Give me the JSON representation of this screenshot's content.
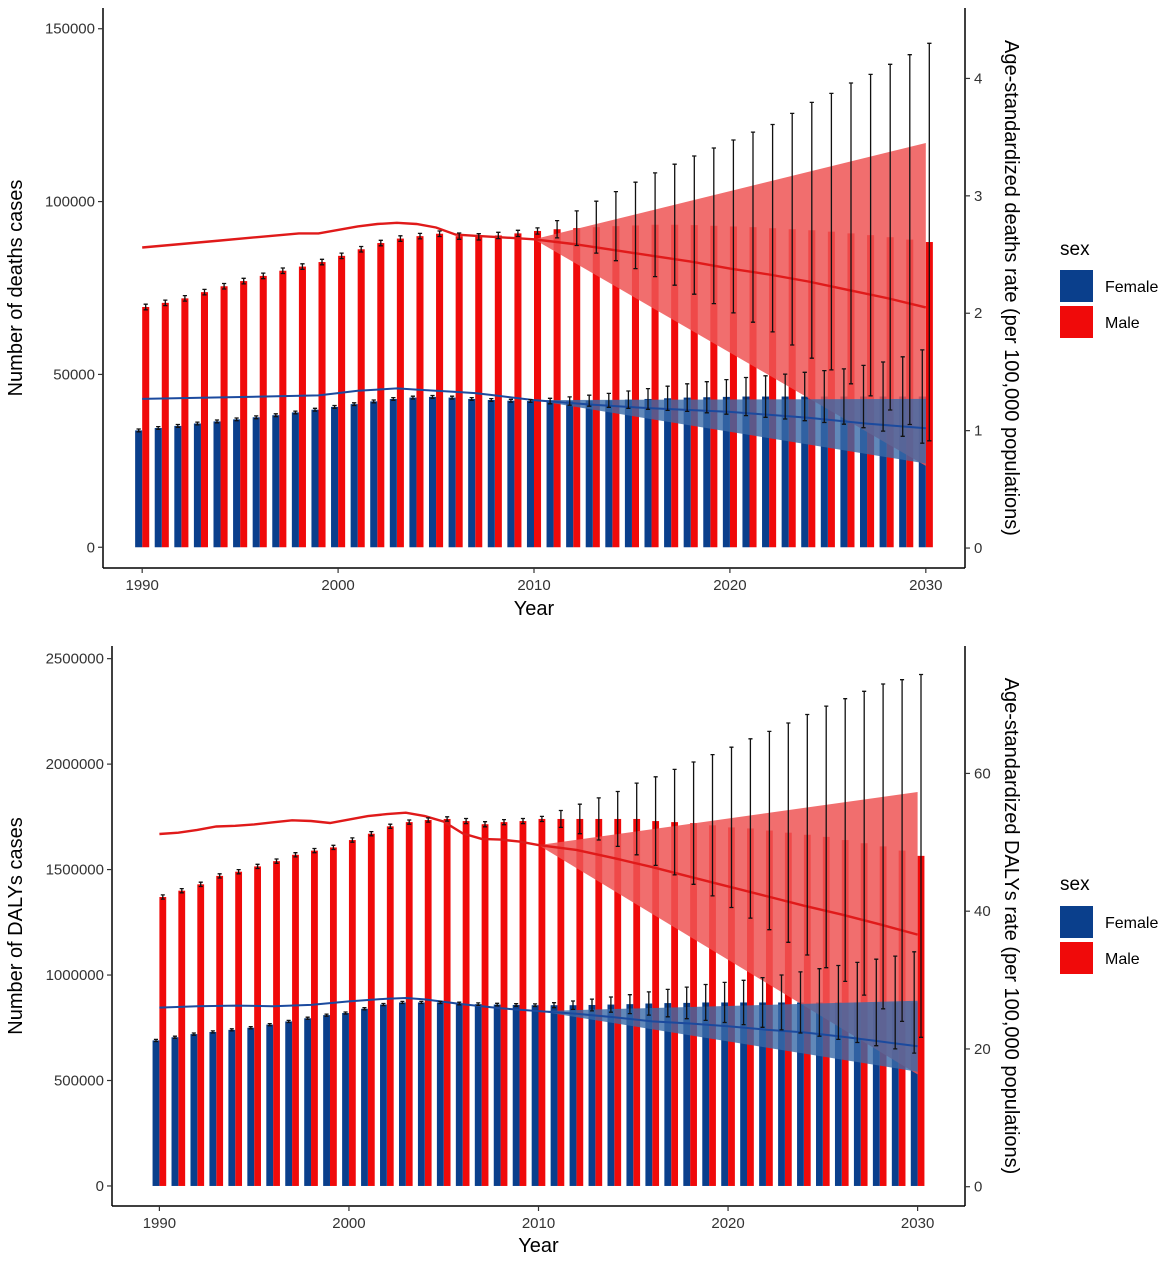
{
  "colors": {
    "female": "#0a3f8c",
    "male": "#f00a0a",
    "male_line": "#e01a1a",
    "female_line": "#1b4a9e",
    "male_band": "#ef5555",
    "female_band": "#3a6aa8",
    "errorbar": "#111111"
  },
  "legend": {
    "title": "sex",
    "items": [
      "Female",
      "Male"
    ]
  },
  "chart_data": [
    {
      "type": "bar",
      "title": "",
      "xlabel": "Year",
      "ylabel": "Number of deaths cases",
      "y2label": "Age-standardized deaths rate (per 100,000 populations)",
      "x": [
        1990,
        1991,
        1992,
        1993,
        1994,
        1995,
        1996,
        1997,
        1998,
        1999,
        2000,
        2001,
        2002,
        2003,
        2004,
        2005,
        2006,
        2007,
        2008,
        2009,
        2010,
        2011,
        2012,
        2013,
        2014,
        2015,
        2016,
        2017,
        2018,
        2019,
        2020,
        2021,
        2022,
        2023,
        2024,
        2025,
        2026,
        2027,
        2028,
        2029,
        2030
      ],
      "xlim": [
        1988,
        2032
      ],
      "xticks": [
        "1990",
        "2000",
        "2010",
        "2020",
        "2030"
      ],
      "ylim": [
        -6000,
        156000
      ],
      "yticks": [
        "0",
        "50000",
        "100000",
        "150000"
      ],
      "y2lim": [
        -0.17,
        4.6
      ],
      "y2ticks": [
        "0",
        "1",
        "2",
        "3",
        "4"
      ],
      "series": [
        {
          "name": "Female",
          "values": [
            33800,
            34500,
            35100,
            35800,
            36400,
            37000,
            37600,
            38200,
            39000,
            39800,
            40600,
            41400,
            42200,
            42900,
            43300,
            43500,
            43300,
            42900,
            42600,
            42400,
            42300,
            42300,
            42300,
            42400,
            42500,
            42700,
            42900,
            43100,
            43300,
            43400,
            43500,
            43600,
            43600,
            43600,
            43600,
            43600,
            43600,
            43600,
            43600,
            43600,
            43600
          ],
          "errors": [
            400,
            400,
            400,
            400,
            400,
            400,
            400,
            400,
            400,
            400,
            400,
            400,
            400,
            400,
            400,
            400,
            400,
            400,
            400,
            400,
            400,
            800,
            1200,
            1600,
            2000,
            2500,
            3000,
            3500,
            4000,
            4500,
            5000,
            5500,
            6000,
            6500,
            7000,
            7500,
            8000,
            9000,
            10000,
            11500,
            13500
          ]
        },
        {
          "name": "Male",
          "values": [
            69500,
            70700,
            72000,
            73800,
            75500,
            77000,
            78500,
            80000,
            81200,
            82500,
            84300,
            86200,
            88000,
            89300,
            90000,
            90700,
            90000,
            89800,
            90200,
            90800,
            91500,
            92000,
            92300,
            92600,
            92900,
            93100,
            93300,
            93300,
            93200,
            93000,
            92800,
            92600,
            92300,
            92000,
            91700,
            91300,
            90800,
            90300,
            89700,
            89000,
            88300
          ],
          "errors": [
            800,
            800,
            800,
            800,
            800,
            800,
            800,
            800,
            800,
            800,
            800,
            800,
            800,
            800,
            800,
            800,
            900,
            900,
            900,
            900,
            900,
            2500,
            5000,
            7500,
            10000,
            12500,
            15000,
            17500,
            20000,
            22500,
            25000,
            27500,
            30000,
            33500,
            37000,
            40000,
            43500,
            46500,
            50000,
            53500,
            57500
          ]
        }
      ],
      "rate_lines": [
        {
          "name": "Male",
          "x": [
            1990,
            1992,
            1994,
            1996,
            1998,
            1999,
            2000,
            2001,
            2002,
            2003,
            2004,
            2005,
            2006,
            2007,
            2008,
            2009,
            2010,
            2012,
            2014,
            2016,
            2018,
            2020,
            2022,
            2024,
            2026,
            2028,
            2030
          ],
          "values": [
            2.56,
            2.59,
            2.62,
            2.65,
            2.68,
            2.68,
            2.71,
            2.74,
            2.76,
            2.77,
            2.76,
            2.73,
            2.67,
            2.66,
            2.65,
            2.64,
            2.63,
            2.59,
            2.54,
            2.49,
            2.44,
            2.38,
            2.33,
            2.27,
            2.2,
            2.13,
            2.05
          ],
          "band_x": [
            2010,
            2030
          ],
          "band_upper": [
            2.63,
            3.45
          ],
          "band_lower": [
            2.63,
            0.7
          ]
        },
        {
          "name": "Female",
          "x": [
            1990,
            1993,
            1996,
            1999,
            2000,
            2001,
            2002,
            2003,
            2004,
            2005,
            2006,
            2007,
            2008,
            2010,
            2013,
            2016,
            2020,
            2024,
            2027,
            2030
          ],
          "values": [
            1.27,
            1.28,
            1.29,
            1.3,
            1.32,
            1.34,
            1.35,
            1.36,
            1.35,
            1.34,
            1.33,
            1.32,
            1.3,
            1.26,
            1.22,
            1.19,
            1.16,
            1.11,
            1.06,
            1.02
          ],
          "band_x": [
            2010,
            2030
          ],
          "band_upper": [
            1.26,
            1.27
          ],
          "band_lower": [
            1.26,
            0.72
          ]
        }
      ]
    },
    {
      "type": "bar",
      "title": "",
      "xlabel": "Year",
      "ylabel": "Number of DALYs cases",
      "y2label": "Age-standardized DALYs rate (per 100,000 populations)",
      "x": [
        1990,
        1991,
        1992,
        1993,
        1994,
        1995,
        1996,
        1997,
        1998,
        1999,
        2000,
        2001,
        2002,
        2003,
        2004,
        2005,
        2006,
        2007,
        2008,
        2009,
        2010,
        2011,
        2012,
        2013,
        2014,
        2015,
        2016,
        2017,
        2018,
        2019,
        2020,
        2021,
        2022,
        2023,
        2024,
        2025,
        2026,
        2027,
        2028,
        2029,
        2030
      ],
      "xlim": [
        1987.5,
        2032.5
      ],
      "xticks": [
        "1990",
        "2000",
        "2010",
        "2020",
        "2030"
      ],
      "ylim": [
        -95000,
        2560000
      ],
      "yticks": [
        "0",
        "500000",
        "1000000",
        "1500000",
        "2000000",
        "2500000"
      ],
      "y2lim": [
        -2.8,
        78.5
      ],
      "y2ticks": [
        "0",
        "20",
        "40",
        "60"
      ],
      "series": [
        {
          "name": "Female",
          "values": [
            690000,
            705000,
            720000,
            730000,
            740000,
            750000,
            765000,
            780000,
            795000,
            810000,
            820000,
            840000,
            860000,
            870000,
            870000,
            870000,
            865000,
            862000,
            860000,
            858000,
            857000,
            857000,
            857000,
            858000,
            860000,
            862000,
            865000,
            867000,
            868000,
            870000,
            870000,
            870000,
            870000,
            870000,
            870000,
            870000,
            870000,
            870000,
            870000,
            870000,
            870000
          ],
          "errors": [
            5000,
            5000,
            5000,
            5000,
            5000,
            5000,
            5000,
            5000,
            5000,
            5000,
            5000,
            5000,
            5000,
            5000,
            5000,
            5000,
            6000,
            6000,
            6000,
            6000,
            6000,
            12000,
            20000,
            28000,
            36000,
            45000,
            55000,
            65000,
            75000,
            85000,
            95000,
            105000,
            118000,
            130000,
            145000,
            160000,
            175000,
            190000,
            205000,
            220000,
            240000
          ]
        },
        {
          "name": "Male",
          "values": [
            1370000,
            1400000,
            1430000,
            1470000,
            1490000,
            1515000,
            1540000,
            1570000,
            1590000,
            1605000,
            1640000,
            1670000,
            1705000,
            1725000,
            1735000,
            1740000,
            1730000,
            1715000,
            1725000,
            1730000,
            1740000,
            1740000,
            1740000,
            1740000,
            1740000,
            1740000,
            1730000,
            1725000,
            1720000,
            1710000,
            1700000,
            1695000,
            1685000,
            1675000,
            1665000,
            1655000,
            1640000,
            1625000,
            1610000,
            1590000,
            1565000
          ],
          "errors": [
            10000,
            10000,
            10000,
            10000,
            10000,
            10000,
            10000,
            10000,
            10000,
            10000,
            10000,
            10000,
            10000,
            10000,
            10000,
            10000,
            12000,
            12000,
            12000,
            12000,
            12000,
            40000,
            70000,
            100000,
            130000,
            170000,
            210000,
            250000,
            290000,
            335000,
            380000,
            425000,
            470000,
            520000,
            570000,
            620000,
            670000,
            720000,
            770000,
            810000,
            860000
          ]
        }
      ],
      "rate_lines": [
        {
          "name": "Male",
          "x": [
            1990,
            1991,
            1992,
            1993,
            1994,
            1995,
            1996,
            1997,
            1998,
            1999,
            2000,
            2001,
            2002,
            2003,
            2004,
            2005,
            2006,
            2007,
            2008,
            2009,
            2010,
            2012,
            2014,
            2016,
            2018,
            2020,
            2022,
            2024,
            2026,
            2028,
            2030
          ],
          "values": [
            51.2,
            51.4,
            51.8,
            52.3,
            52.4,
            52.6,
            52.9,
            53.2,
            53.1,
            52.8,
            53.3,
            53.8,
            54.1,
            54.3,
            53.8,
            53.0,
            51.3,
            50.5,
            50.4,
            50.1,
            49.6,
            48.9,
            47.7,
            46.4,
            45.0,
            43.6,
            42.2,
            40.8,
            39.5,
            38.1,
            36.6
          ],
          "band_x": [
            2010,
            2030
          ],
          "band_upper": [
            49.6,
            57.3
          ],
          "band_lower": [
            49.6,
            16.3
          ]
        },
        {
          "name": "Female",
          "x": [
            1990,
            1992,
            1994,
            1996,
            1998,
            2000,
            2002,
            2003,
            2004,
            2006,
            2008,
            2010,
            2012,
            2014,
            2016,
            2018,
            2020,
            2022,
            2024,
            2026,
            2028,
            2030
          ],
          "values": [
            26.0,
            26.2,
            26.3,
            26.2,
            26.4,
            26.9,
            27.3,
            27.4,
            27.2,
            26.5,
            25.9,
            25.5,
            25.1,
            24.6,
            24.0,
            23.7,
            23.3,
            22.8,
            22.4,
            21.8,
            21.1,
            20.4
          ],
          "band_x": [
            2010,
            2030
          ],
          "band_upper": [
            25.5,
            27.0
          ],
          "band_lower": [
            25.5,
            16.7
          ]
        }
      ]
    }
  ]
}
